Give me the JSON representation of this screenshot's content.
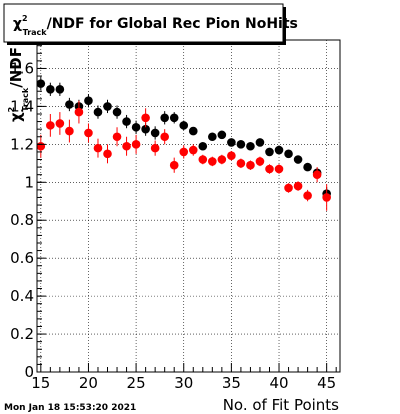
{
  "chart_data": {
    "type": "scatter",
    "title": {
      "chi_symbol": "χ",
      "superscript": "2",
      "subscript": "Track",
      "rest": "/NDF for Global Rec Pion NoHits"
    },
    "xlabel": "No. of Fit Points",
    "ylabel": {
      "chi_symbol": "χ",
      "superscript": "2",
      "subscript": "Track",
      "rest": "/NDF"
    },
    "xlim": [
      14.6,
      46.4
    ],
    "ylim": [
      0,
      1.75
    ],
    "xticks": [
      15,
      20,
      25,
      30,
      35,
      40,
      45
    ],
    "yticks": [
      0,
      0.2,
      0.4,
      0.6,
      0.8,
      1,
      1.2,
      1.4,
      1.6
    ],
    "ytick_labels": [
      "0",
      "0.2",
      "0.4",
      "0.6",
      "0.8",
      "1",
      "1.2",
      "1.4",
      "1.6"
    ],
    "grid": true,
    "timestamp": "Mon Jan 18 15:53:20 2021",
    "series": [
      {
        "color": "#000000",
        "x": [
          15,
          16,
          17,
          18,
          19,
          20,
          21,
          22,
          23,
          24,
          25,
          26,
          27,
          28,
          29,
          30,
          31,
          32,
          33,
          34,
          35,
          36,
          37,
          38,
          39,
          40,
          41,
          42,
          43,
          44,
          45
        ],
        "y": [
          1.52,
          1.49,
          1.49,
          1.41,
          1.4,
          1.43,
          1.37,
          1.4,
          1.37,
          1.32,
          1.29,
          1.28,
          1.26,
          1.34,
          1.34,
          1.3,
          1.27,
          1.19,
          1.24,
          1.25,
          1.21,
          1.2,
          1.19,
          1.21,
          1.16,
          1.17,
          1.15,
          1.12,
          1.08,
          1.05,
          0.94
        ],
        "err": [
          0.035,
          0.035,
          0.035,
          0.035,
          0.035,
          0.035,
          0.035,
          0.035,
          0.035,
          0.035,
          0.035,
          0.035,
          0.035,
          0.035,
          0.03,
          0.025,
          0.02,
          0.015,
          0.015,
          0.015,
          0.015,
          0.015,
          0.015,
          0.015,
          0.015,
          0.015,
          0.015,
          0.015,
          0.02,
          0.025,
          0.035
        ]
      },
      {
        "color": "#ff0000",
        "x": [
          15,
          16,
          17,
          18,
          19,
          20,
          21,
          22,
          23,
          24,
          25,
          26,
          27,
          28,
          29,
          30,
          31,
          32,
          33,
          34,
          35,
          36,
          37,
          38,
          39,
          40,
          41,
          42,
          43,
          44,
          45
        ],
        "y": [
          1.19,
          1.3,
          1.31,
          1.27,
          1.37,
          1.26,
          1.18,
          1.15,
          1.24,
          1.19,
          1.2,
          1.34,
          1.18,
          1.24,
          1.09,
          1.16,
          1.17,
          1.12,
          1.11,
          1.12,
          1.14,
          1.1,
          1.09,
          1.11,
          1.07,
          1.07,
          0.97,
          0.98,
          0.93,
          1.04,
          0.92
        ],
        "err": [
          0.06,
          0.06,
          0.06,
          0.06,
          0.06,
          0.05,
          0.05,
          0.05,
          0.05,
          0.05,
          0.05,
          0.05,
          0.04,
          0.04,
          0.04,
          0.035,
          0.03,
          0.025,
          0.025,
          0.025,
          0.025,
          0.025,
          0.025,
          0.025,
          0.025,
          0.025,
          0.025,
          0.025,
          0.03,
          0.04,
          0.07
        ]
      }
    ]
  }
}
